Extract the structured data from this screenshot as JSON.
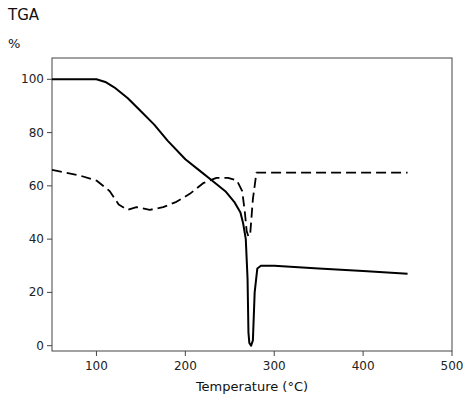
{
  "chart_data": {
    "type": "line",
    "title": "TGA",
    "ylabel": "%",
    "xlabel": "Temperature (°C)",
    "xlim": [
      50,
      500
    ],
    "ylim": [
      -2,
      108
    ],
    "xticks": [
      100,
      200,
      300,
      400,
      500
    ],
    "yticks": [
      0,
      20,
      40,
      60,
      80,
      100
    ],
    "grid": false,
    "series": [
      {
        "color": "#000000",
        "line_style": "solid",
        "x": [
          50,
          75,
          100,
          110,
          120,
          135,
          150,
          165,
          180,
          200,
          215,
          230,
          245,
          255,
          262,
          265,
          268,
          270,
          271,
          272,
          274,
          276,
          278,
          281,
          285,
          290,
          300,
          350,
          400,
          450
        ],
        "values": [
          100,
          100,
          100,
          99,
          97,
          93,
          88,
          83,
          77,
          70,
          66,
          62,
          58,
          54,
          50,
          46,
          40,
          25,
          5,
          1,
          0,
          2,
          20,
          29,
          30,
          30,
          30,
          29,
          28,
          27
        ]
      },
      {
        "color": "#000000",
        "line_style": "dashed",
        "x": [
          50,
          65,
          80,
          100,
          115,
          125,
          135,
          145,
          160,
          175,
          190,
          205,
          220,
          235,
          248,
          258,
          264,
          267,
          269,
          271,
          273,
          276,
          280,
          285,
          295,
          320,
          370,
          420,
          450
        ],
        "values": [
          66,
          65,
          64,
          62,
          58,
          53,
          51,
          52,
          51,
          52,
          54,
          57,
          61,
          63,
          63,
          62,
          58,
          50,
          43,
          41,
          42,
          55,
          65,
          65,
          65,
          65,
          65,
          65,
          65
        ]
      }
    ]
  }
}
